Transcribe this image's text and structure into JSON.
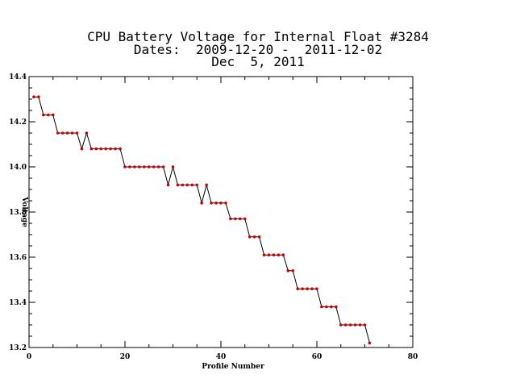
{
  "chart_data": {
    "type": "line",
    "title_lines": [
      "CPU Battery Voltage for Internal Float #3284",
      "Dates:  2009-12-20 -  2011-12-02",
      "Dec  5, 2011"
    ],
    "xlabel": "Profile Number",
    "ylabel": "Voltage",
    "xlim": [
      0,
      80
    ],
    "ylim": [
      13.2,
      14.4
    ],
    "x_ticks": [
      0,
      20,
      40,
      60,
      80
    ],
    "x_tick_labels": [
      "0",
      "20",
      "40",
      "60",
      "80"
    ],
    "y_ticks": [
      13.2,
      13.4,
      13.6,
      13.8,
      14.0,
      14.2,
      14.4
    ],
    "y_tick_labels": [
      "13.2",
      "13.4",
      "13.6",
      "13.8",
      "14.0",
      "14.2",
      "14.4"
    ],
    "grid": false,
    "line_color": "#000000",
    "marker_color": "#cc0000",
    "x": [
      1,
      2,
      3,
      4,
      5,
      6,
      7,
      8,
      9,
      10,
      11,
      12,
      13,
      14,
      15,
      16,
      17,
      18,
      19,
      20,
      21,
      22,
      23,
      24,
      25,
      26,
      27,
      28,
      29,
      30,
      31,
      32,
      33,
      34,
      35,
      36,
      37,
      38,
      39,
      40,
      41,
      42,
      43,
      44,
      45,
      46,
      47,
      48,
      49,
      50,
      51,
      52,
      53,
      54,
      55,
      56,
      57,
      58,
      59,
      60,
      61,
      62,
      63,
      64,
      65,
      66,
      67,
      68,
      69,
      70,
      71
    ],
    "y": [
      14.31,
      14.31,
      14.23,
      14.23,
      14.23,
      14.15,
      14.15,
      14.15,
      14.15,
      14.15,
      14.08,
      14.15,
      14.08,
      14.08,
      14.08,
      14.08,
      14.08,
      14.08,
      14.08,
      14.0,
      14.0,
      14.0,
      14.0,
      14.0,
      14.0,
      14.0,
      14.0,
      14.0,
      13.92,
      14.0,
      13.92,
      13.92,
      13.92,
      13.92,
      13.92,
      13.84,
      13.92,
      13.84,
      13.84,
      13.84,
      13.84,
      13.77,
      13.77,
      13.77,
      13.77,
      13.69,
      13.69,
      13.69,
      13.61,
      13.61,
      13.61,
      13.61,
      13.61,
      13.54,
      13.54,
      13.46,
      13.46,
      13.46,
      13.46,
      13.46,
      13.38,
      13.38,
      13.38,
      13.38,
      13.3,
      13.3,
      13.3,
      13.3,
      13.3,
      13.3,
      13.22
    ]
  }
}
